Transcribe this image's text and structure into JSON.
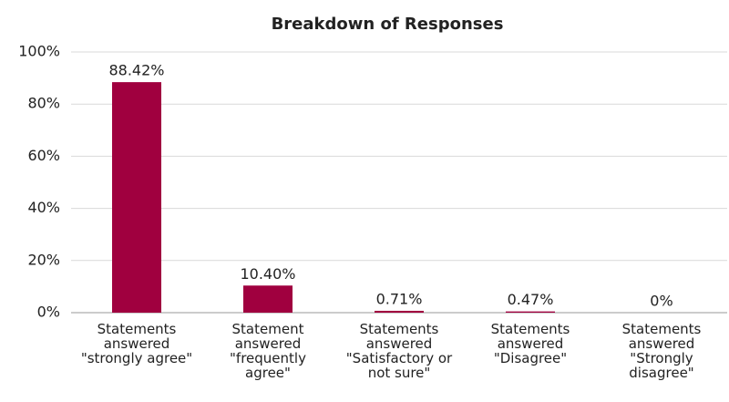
{
  "chart_data": {
    "type": "bar",
    "title": "Breakdown of Responses",
    "categories": [
      "Statements answered \"strongly agree\"",
      "Statement answered \"frequently agree\"",
      "Statements answered \"Satisfactory or not sure\"",
      "Statements answered \"Disagree\"",
      "Statements answered \"Strongly disagree\""
    ],
    "values": [
      88.42,
      10.4,
      0.71,
      0.47,
      0
    ],
    "value_labels": [
      "88.42%",
      "10.40%",
      "0.71%",
      "0.47%",
      "0%"
    ],
    "color": "#a0003f",
    "ylim": [
      0,
      100
    ],
    "yticks": [
      {
        "value": 0,
        "label": "0%"
      },
      {
        "value": 20,
        "label": "20%"
      },
      {
        "value": 40,
        "label": "40%"
      },
      {
        "value": 60,
        "label": "60%"
      },
      {
        "value": 80,
        "label": "80%"
      },
      {
        "value": 100,
        "label": "100%"
      }
    ],
    "grid": true
  }
}
